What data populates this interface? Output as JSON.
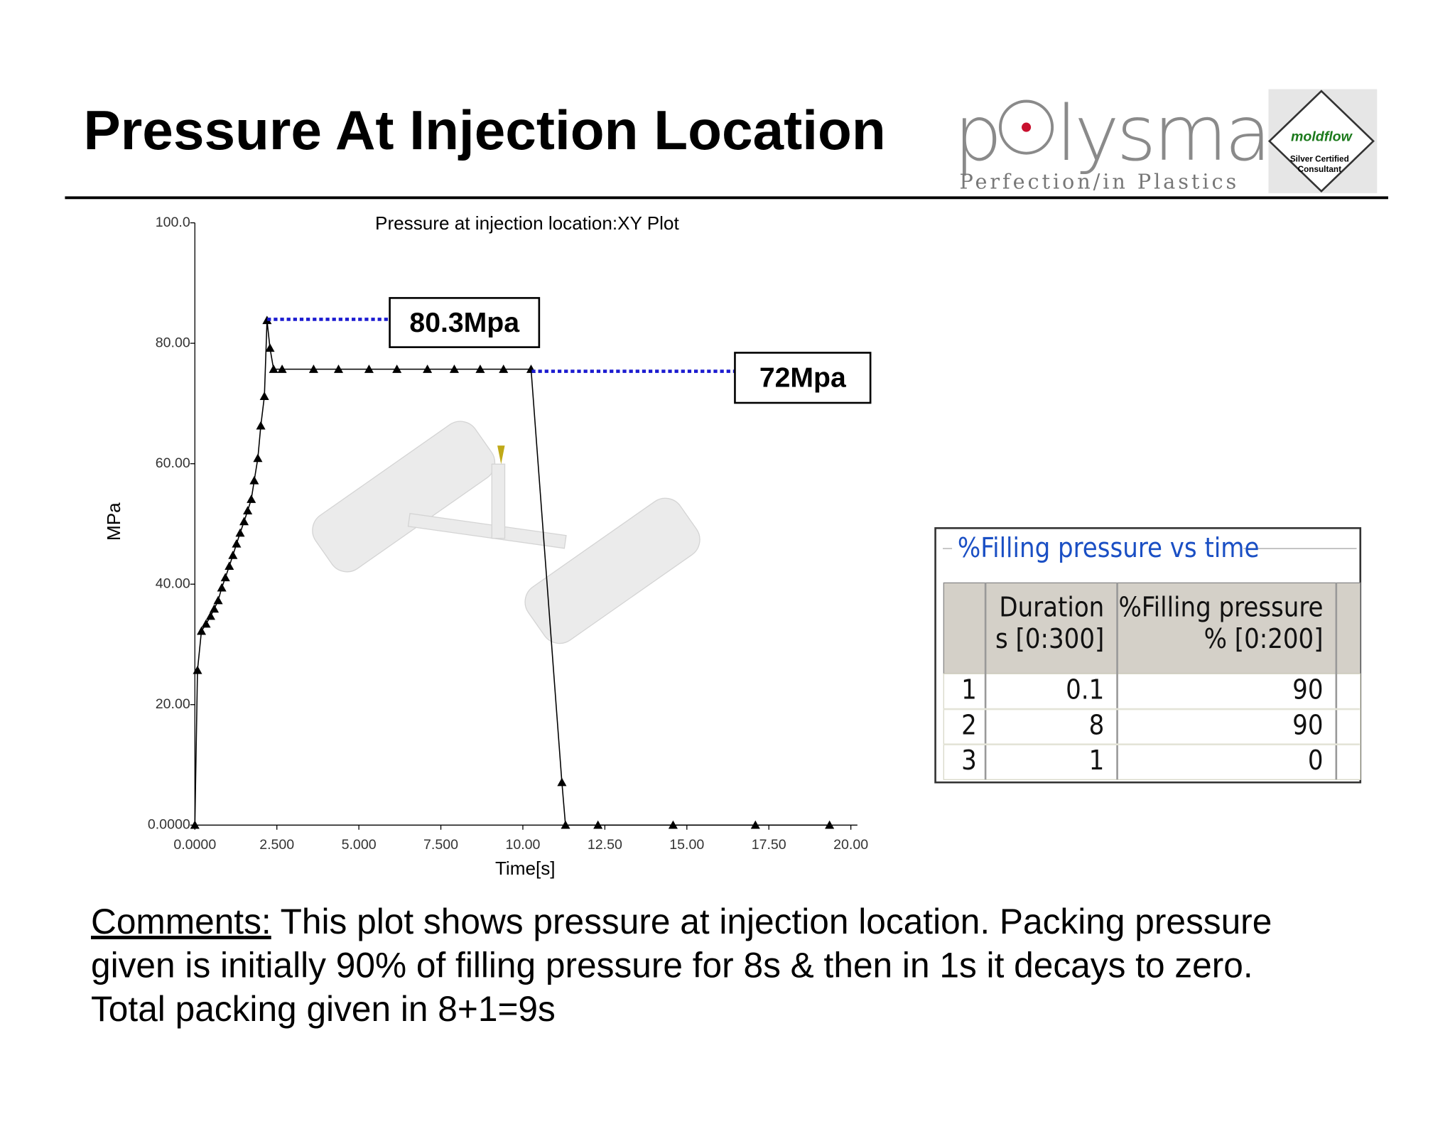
{
  "header": {
    "title": "Pressure At Injection Location",
    "logo": {
      "name_start": "p",
      "name_end": "lysmart",
      "tagline": "Perfection/in Plastics",
      "badge": "moldflow",
      "badge_line1": "Silver Certified",
      "badge_line2": "Consultant"
    }
  },
  "chart_data": {
    "type": "line",
    "title": "Pressure at injection location:XY Plot",
    "x_label": "Time[s]",
    "y_label": "MPa",
    "color": "#000000",
    "x": [
      0,
      0.08,
      0.2,
      0.34,
      0.48,
      0.59,
      0.71,
      0.82,
      0.93,
      1.05,
      1.16,
      1.27,
      1.38,
      1.5,
      1.61,
      1.72,
      1.81,
      1.92,
      2.01,
      2.12,
      2.2,
      2.29,
      2.4,
      2.66,
      3.62,
      4.38,
      5.31,
      6.16,
      7.09,
      7.91,
      8.7,
      9.41,
      10.25,
      11.19,
      11.3,
      12.29,
      14.58,
      17.09,
      19.35
    ],
    "values": [
      0,
      25.7,
      32.2,
      33.4,
      34.7,
      35.9,
      37.3,
      39.4,
      41.1,
      43.0,
      44.8,
      46.7,
      48.5,
      50.4,
      52.2,
      54.1,
      57.2,
      60.9,
      66.3,
      71.2,
      83.8,
      79.2,
      75.7,
      75.7,
      75.7,
      75.7,
      75.7,
      75.7,
      75.7,
      75.7,
      75.7,
      75.7,
      75.7,
      7.1,
      0,
      0,
      0,
      0,
      0
    ],
    "xlim": [
      0,
      20.2
    ],
    "ylim": [
      0,
      100
    ],
    "xticks": [
      {
        "value": 0,
        "label": "0.0000"
      },
      {
        "value": 2.5,
        "label": "2.500"
      },
      {
        "value": 5,
        "label": "5.000"
      },
      {
        "value": 7.5,
        "label": "7.500"
      },
      {
        "value": 10,
        "label": "10.00"
      },
      {
        "value": 12.5,
        "label": "12.50"
      },
      {
        "value": 15,
        "label": "15.00"
      },
      {
        "value": 17.5,
        "label": "17.50"
      },
      {
        "value": 20,
        "label": "20.00"
      }
    ],
    "yticks": [
      {
        "value": 0,
        "label": "0.0000"
      },
      {
        "value": 20,
        "label": "20.00"
      },
      {
        "value": 40,
        "label": "40.00"
      },
      {
        "value": 60,
        "label": "60.00"
      },
      {
        "value": 80,
        "label": "80.00"
      },
      {
        "value": 100,
        "label": "100.0"
      }
    ],
    "annotations": [
      "80.3Mpa",
      "72Mpa"
    ]
  },
  "table": {
    "title": "%Filling pressure vs time",
    "headers": [
      [
        "Duration",
        "s [0:300]"
      ],
      [
        "%Filling pressure",
        "% [0:200]"
      ]
    ],
    "rows": [
      [
        "1",
        "0.1",
        "90"
      ],
      [
        "2",
        "8",
        "90"
      ],
      [
        "3",
        "1",
        "0"
      ]
    ]
  },
  "comments": {
    "label": "Comments:",
    "lines": [
      " This plot shows pressure at injection location. Packing pressure",
      "given is initially 90% of filling pressure for 8s & then in 1s it decays to zero.",
      "Total packing given in 8+1=9s"
    ]
  }
}
